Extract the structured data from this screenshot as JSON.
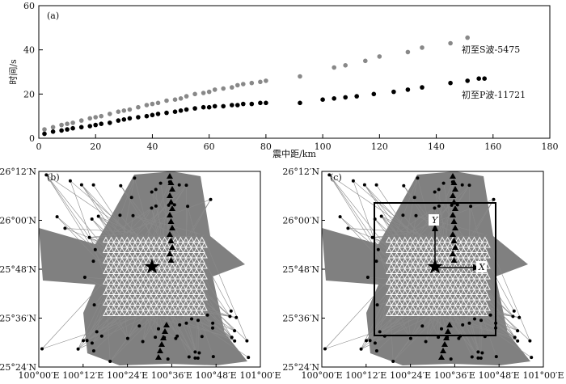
{
  "chart_data": [
    {
      "type": "scatter",
      "panel_label": "(a)",
      "xlabel": "震中距/km",
      "ylabel": "时间/s",
      "xlim": [
        0,
        180
      ],
      "ylim": [
        0,
        60
      ],
      "xticks": [
        0,
        20,
        40,
        60,
        80,
        100,
        120,
        140,
        160,
        180
      ],
      "yticks": [
        0,
        20,
        40,
        60
      ],
      "grid": false,
      "series": [
        {
          "name": "初至S波-5475",
          "color": "#888888",
          "x": [
            2,
            5,
            8,
            10,
            12,
            15,
            18,
            20,
            22,
            25,
            28,
            30,
            32,
            35,
            38,
            40,
            42,
            45,
            48,
            50,
            52,
            55,
            58,
            60,
            62,
            65,
            68,
            70,
            72,
            75,
            78,
            80,
            92,
            104,
            108,
            115,
            120,
            130,
            135,
            145,
            151
          ],
          "y": [
            4,
            5,
            6,
            6.5,
            7,
            8,
            9,
            9.5,
            10,
            11,
            12,
            12.5,
            13,
            14,
            15,
            15.5,
            16,
            17,
            17.5,
            18,
            19,
            20,
            20.5,
            21,
            22,
            22.5,
            23,
            24,
            24.5,
            25,
            25.5,
            26,
            28,
            32,
            33,
            35,
            37,
            39,
            41,
            43,
            45.5
          ]
        },
        {
          "name": "初至P波-11721",
          "color": "#000000",
          "x": [
            2,
            5,
            8,
            10,
            12,
            15,
            18,
            20,
            22,
            25,
            28,
            30,
            32,
            35,
            38,
            40,
            42,
            45,
            48,
            50,
            52,
            55,
            58,
            60,
            62,
            65,
            68,
            70,
            72,
            75,
            78,
            80,
            92,
            100,
            104,
            108,
            112,
            118,
            125,
            130,
            135,
            145,
            151,
            155,
            157
          ],
          "y": [
            2,
            3,
            3.5,
            4,
            4.5,
            5,
            5.5,
            6,
            6.5,
            7,
            8,
            8.5,
            9,
            9.5,
            10,
            10.5,
            11,
            11.5,
            12,
            12.5,
            13,
            13.5,
            14,
            14,
            14.5,
            14.5,
            15,
            15,
            15.5,
            15.5,
            16,
            16,
            16,
            17.5,
            18,
            18.5,
            19,
            20,
            21,
            22,
            23,
            25,
            26,
            27,
            27
          ]
        }
      ],
      "legend_placement": "annotations right"
    },
    {
      "type": "map",
      "panel_label": "(b)",
      "lon_ticks": [
        "100°00′E",
        "100°12′E",
        "100°24′E",
        "100°36′E",
        "100°48′E",
        "101°00′E"
      ],
      "lat_ticks": [
        "26°12′N",
        "26°00′N",
        "25°48′N",
        "25°36′N",
        "25°24′N"
      ]
    },
    {
      "type": "map",
      "panel_label": "(c)",
      "lon_ticks": [
        "100°00′E",
        "100°12′E",
        "100°24′E",
        "100°36′E",
        "100°48′E",
        "101°00′E"
      ],
      "lat_ticks": [
        "26°12′N",
        "26°00′N",
        "25°48′N",
        "25°36′N",
        "25°24′N"
      ],
      "axis_x_label": "X",
      "axis_y_label": "Y"
    }
  ]
}
